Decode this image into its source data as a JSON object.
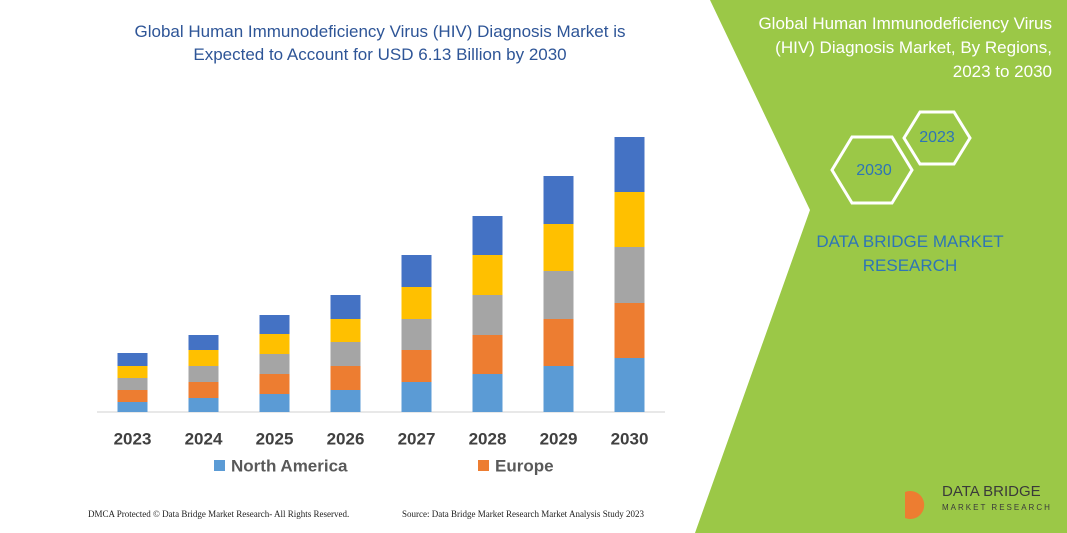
{
  "chart_data": {
    "type": "stacked-bar",
    "title": "Global Human Immunodeficiency Virus (HIV) Diagnosis Market is Expected to Account for USD 6.13 Billion by 2030",
    "categories": [
      "2023",
      "2024",
      "2025",
      "2026",
      "2027",
      "2028",
      "2029",
      "2030"
    ],
    "series": [
      {
        "name": "North America",
        "color": "#5b9bd5",
        "values": [
          10,
          14,
          18,
          22,
          30,
          38,
          46,
          54
        ]
      },
      {
        "name": "Europe",
        "color": "#ed7d31",
        "values": [
          12,
          16,
          20,
          24,
          32,
          39,
          47,
          55
        ]
      },
      {
        "name": null,
        "color": "#a5a5a5",
        "values": [
          12,
          16,
          20,
          24,
          31,
          40,
          48,
          56
        ]
      },
      {
        "name": null,
        "color": "#ffc000",
        "values": [
          12,
          16,
          20,
          23,
          32,
          40,
          47,
          55
        ]
      },
      {
        "name": null,
        "color": "#4472c4",
        "values": [
          13,
          15,
          19,
          24,
          32,
          39,
          48,
          55
        ]
      }
    ],
    "ylim": [
      0,
      300
    ]
  },
  "sidebar": {
    "title": "Global Human Immunodeficiency Virus (HIV) Diagnosis Market, By Regions, 2023 to 2030",
    "hexagons": [
      "2023",
      "2030"
    ],
    "brand": "DATA BRIDGE MARKET RESEARCH",
    "logo": [
      "DATA BRIDGE",
      "MARKET RESEARCH"
    ]
  },
  "footer": {
    "left": "DMCA Protected © Data Bridge Market Research- All Rights Reserved.",
    "right": "Source: Data Bridge Market Research Market Analysis Study 2023"
  }
}
